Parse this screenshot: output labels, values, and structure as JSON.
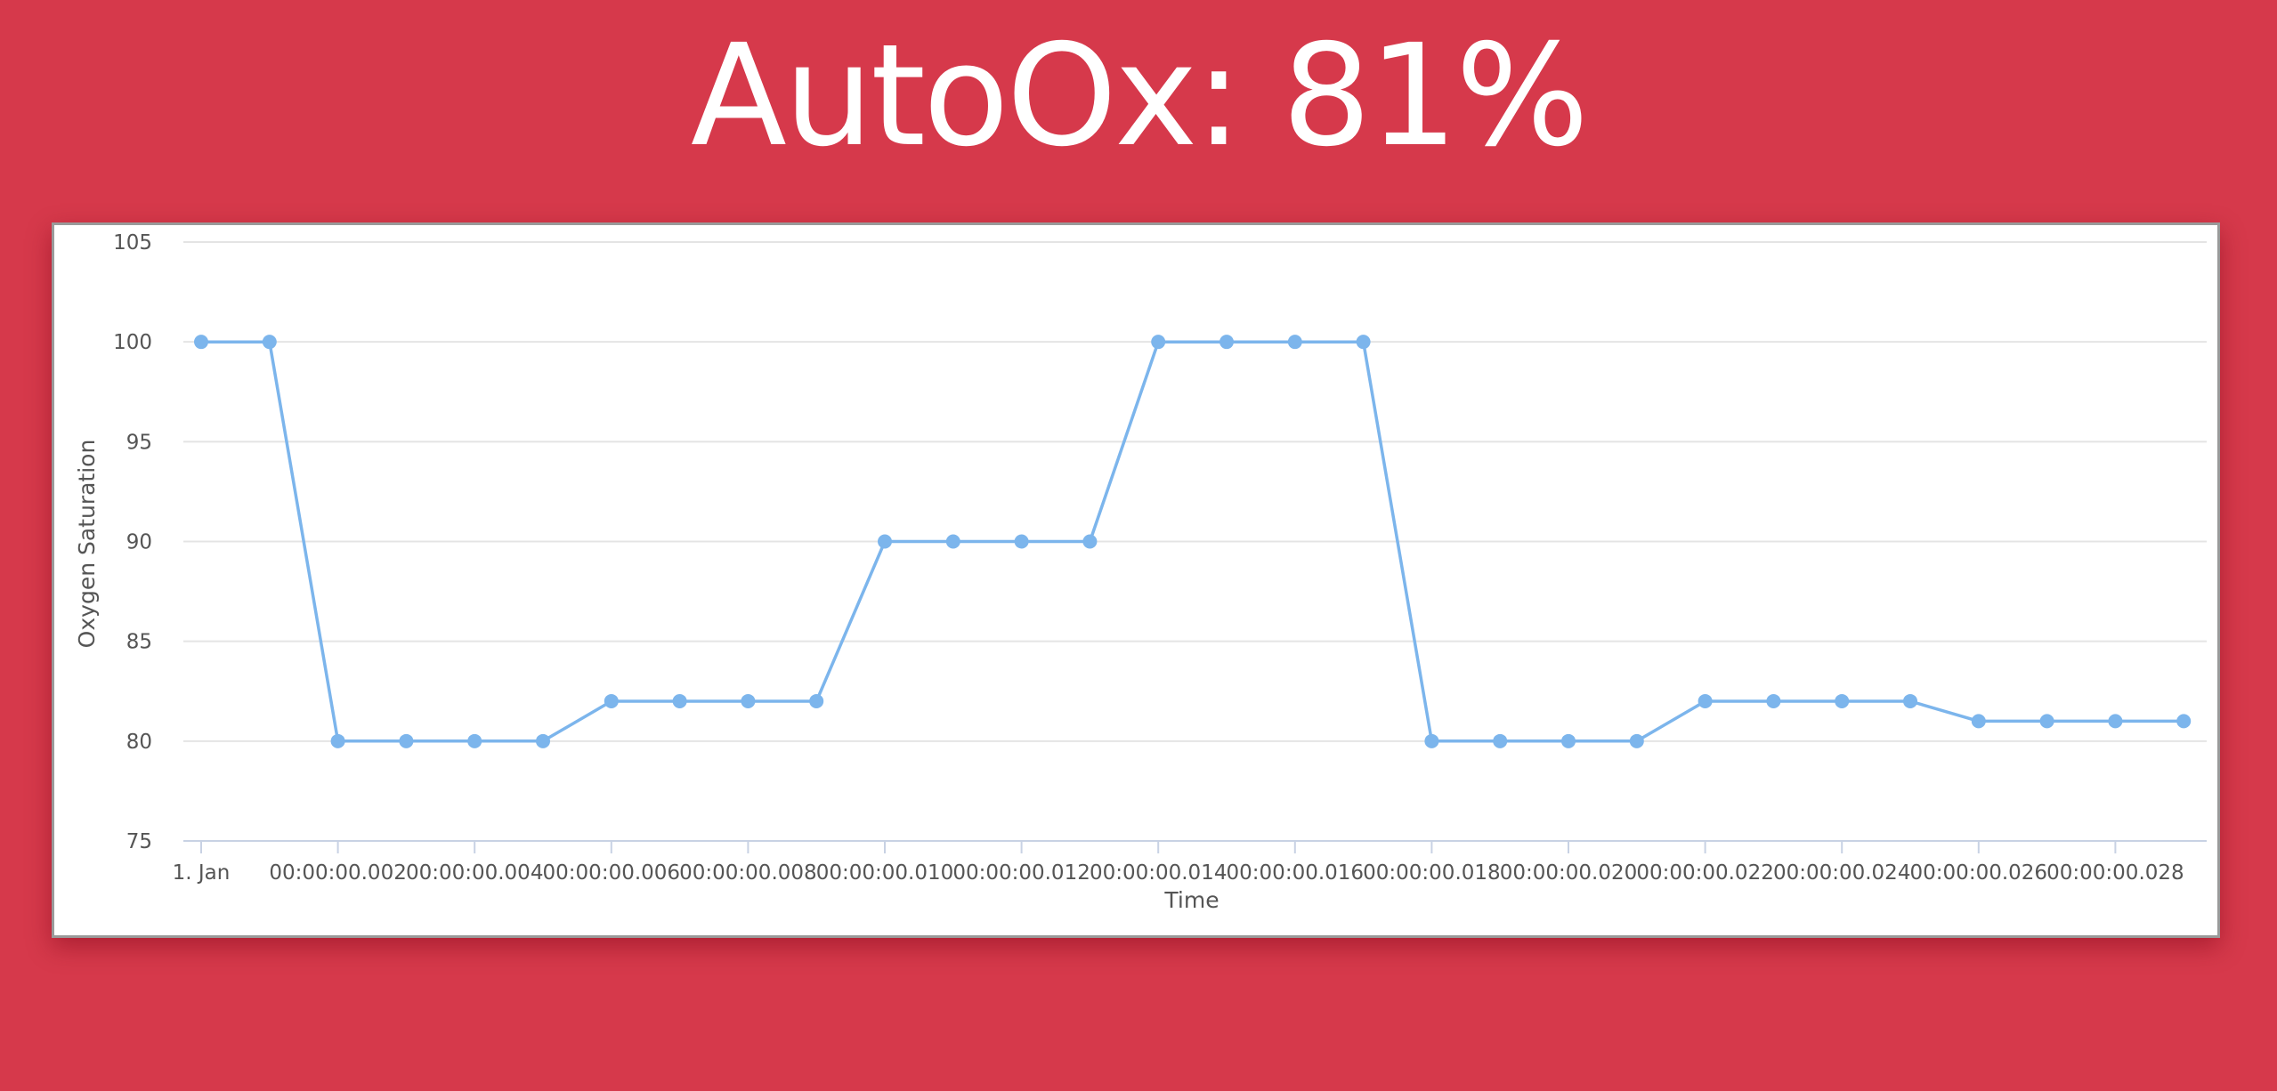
{
  "header": {
    "title": "AutoOx: 81%"
  },
  "colors": {
    "background": "#d6394b",
    "series": "#7cb5ec",
    "panel": "#ffffff"
  },
  "chart_data": {
    "type": "line",
    "title": "",
    "xlabel": "Time",
    "ylabel": "Oxygen Saturation",
    "ylim": [
      75,
      105
    ],
    "yticks": [
      75,
      80,
      85,
      90,
      95,
      100,
      105
    ],
    "x_unit": "ms",
    "xlim": [
      0,
      29
    ],
    "x": [
      0,
      1,
      2,
      3,
      4,
      5,
      6,
      7,
      8,
      9,
      10,
      11,
      12,
      13,
      14,
      15,
      16,
      17,
      18,
      19,
      20,
      21,
      22,
      23,
      24,
      25,
      26,
      27,
      28,
      29
    ],
    "xticks": [
      {
        "x": 0,
        "label": "1. Jan"
      },
      {
        "x": 2,
        "label": "00:00:00.002"
      },
      {
        "x": 4,
        "label": "00:00:00.004"
      },
      {
        "x": 6,
        "label": "00:00:00.006"
      },
      {
        "x": 8,
        "label": "00:00:00.008"
      },
      {
        "x": 10,
        "label": "00:00:00.010"
      },
      {
        "x": 12,
        "label": "00:00:00.012"
      },
      {
        "x": 14,
        "label": "00:00:00.014"
      },
      {
        "x": 16,
        "label": "00:00:00.016"
      },
      {
        "x": 18,
        "label": "00:00:00.018"
      },
      {
        "x": 20,
        "label": "00:00:00.020"
      },
      {
        "x": 22,
        "label": "00:00:00.022"
      },
      {
        "x": 24,
        "label": "00:00:00.024"
      },
      {
        "x": 26,
        "label": "00:00:00.026"
      },
      {
        "x": 28,
        "label": "00:00:00.028"
      }
    ],
    "series": [
      {
        "values": [
          100,
          100,
          80,
          80,
          80,
          80,
          82,
          82,
          82,
          82,
          90,
          90,
          90,
          90,
          100,
          100,
          100,
          100,
          80,
          80,
          80,
          80,
          82,
          82,
          82,
          82,
          81,
          81,
          81,
          81
        ]
      }
    ],
    "grid": true,
    "legend": "none"
  }
}
